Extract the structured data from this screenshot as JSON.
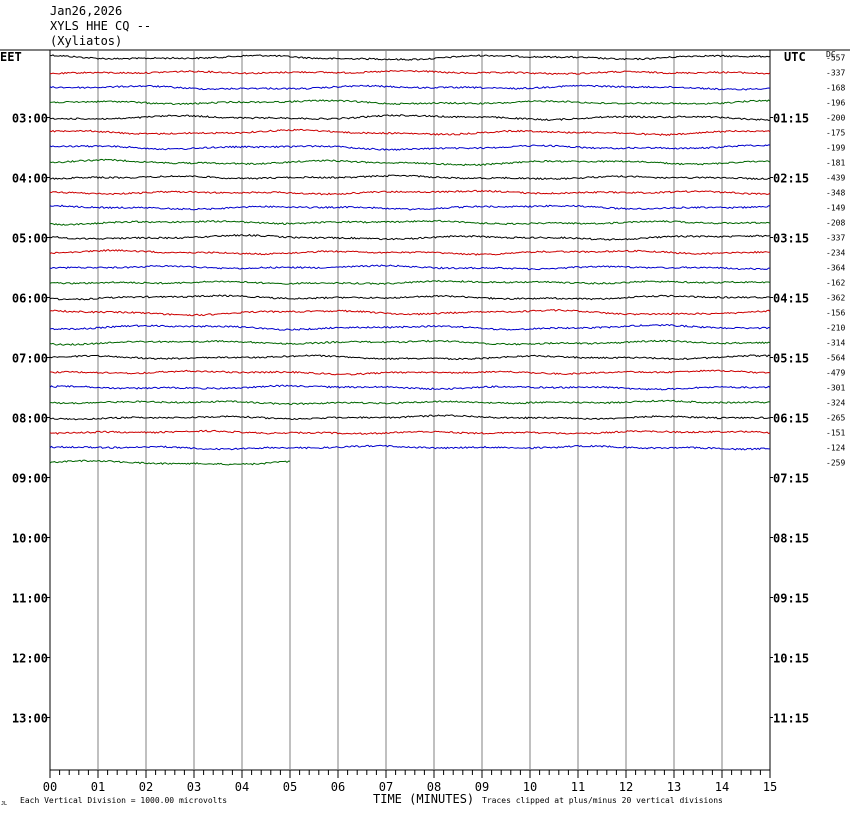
{
  "header": {
    "date": "Jan26,2026",
    "station": "XYLS HHE CQ --",
    "location": "(Xyliatos)"
  },
  "left_axis_title": "EET",
  "right_axis_title": "UTC",
  "dc_label": "DC",
  "footer": {
    "left_note": "Each Vertical Division = 1000.00 microvolts",
    "xlabel": "TIME (MINUTES)",
    "right_note": "Traces clipped at plus/minus 20 vertical divisions",
    "corner_mark": "JL"
  },
  "colors": {
    "trace_cycle": [
      "#000000",
      "#cc0000",
      "#0000cc",
      "#006600"
    ],
    "grid": "#808080",
    "axis": "#000000"
  },
  "chart_data": {
    "type": "helicorder",
    "x": {
      "label": "TIME (MINUTES)",
      "min": 0,
      "max": 15,
      "ticks": [
        "00",
        "01",
        "02",
        "03",
        "04",
        "05",
        "06",
        "07",
        "08",
        "09",
        "10",
        "11",
        "12",
        "13",
        "14",
        "15"
      ]
    },
    "left_time_labels": [
      "03:00",
      "04:00",
      "05:00",
      "06:00",
      "07:00",
      "08:00",
      "09:00",
      "10:00",
      "11:00",
      "12:00",
      "13:00"
    ],
    "right_time_labels": [
      "01:15",
      "02:15",
      "03:15",
      "04:15",
      "05:15",
      "06:15",
      "07:15",
      "08:15",
      "09:15",
      "10:15",
      "11:15"
    ],
    "rows_per_hour": 4,
    "traces": [
      {
        "dc": "-557",
        "color": "#000000"
      },
      {
        "dc": "-337",
        "color": "#cc0000"
      },
      {
        "dc": "-168",
        "color": "#0000cc"
      },
      {
        "dc": "-196",
        "color": "#006600"
      },
      {
        "dc": "-200",
        "color": "#000000"
      },
      {
        "dc": "-175",
        "color": "#cc0000"
      },
      {
        "dc": "-199",
        "color": "#0000cc"
      },
      {
        "dc": "-181",
        "color": "#006600"
      },
      {
        "dc": "-439",
        "color": "#000000"
      },
      {
        "dc": "-348",
        "color": "#cc0000"
      },
      {
        "dc": "-149",
        "color": "#0000cc"
      },
      {
        "dc": "-208",
        "color": "#006600"
      },
      {
        "dc": "-337",
        "color": "#000000"
      },
      {
        "dc": "-234",
        "color": "#cc0000"
      },
      {
        "dc": "-364",
        "color": "#0000cc"
      },
      {
        "dc": "-162",
        "color": "#006600"
      },
      {
        "dc": "-362",
        "color": "#000000"
      },
      {
        "dc": "-156",
        "color": "#cc0000"
      },
      {
        "dc": "-210",
        "color": "#0000cc"
      },
      {
        "dc": "-314",
        "color": "#006600"
      },
      {
        "dc": "-564",
        "color": "#000000"
      },
      {
        "dc": "-479",
        "color": "#cc0000"
      },
      {
        "dc": "-301",
        "color": "#0000cc"
      },
      {
        "dc": "-324",
        "color": "#006600"
      },
      {
        "dc": "-265",
        "color": "#000000"
      },
      {
        "dc": "-151",
        "color": "#cc0000"
      },
      {
        "dc": "-124",
        "color": "#0000cc"
      },
      {
        "dc": "-259",
        "color": "#006600",
        "end_minute": 5
      }
    ]
  }
}
